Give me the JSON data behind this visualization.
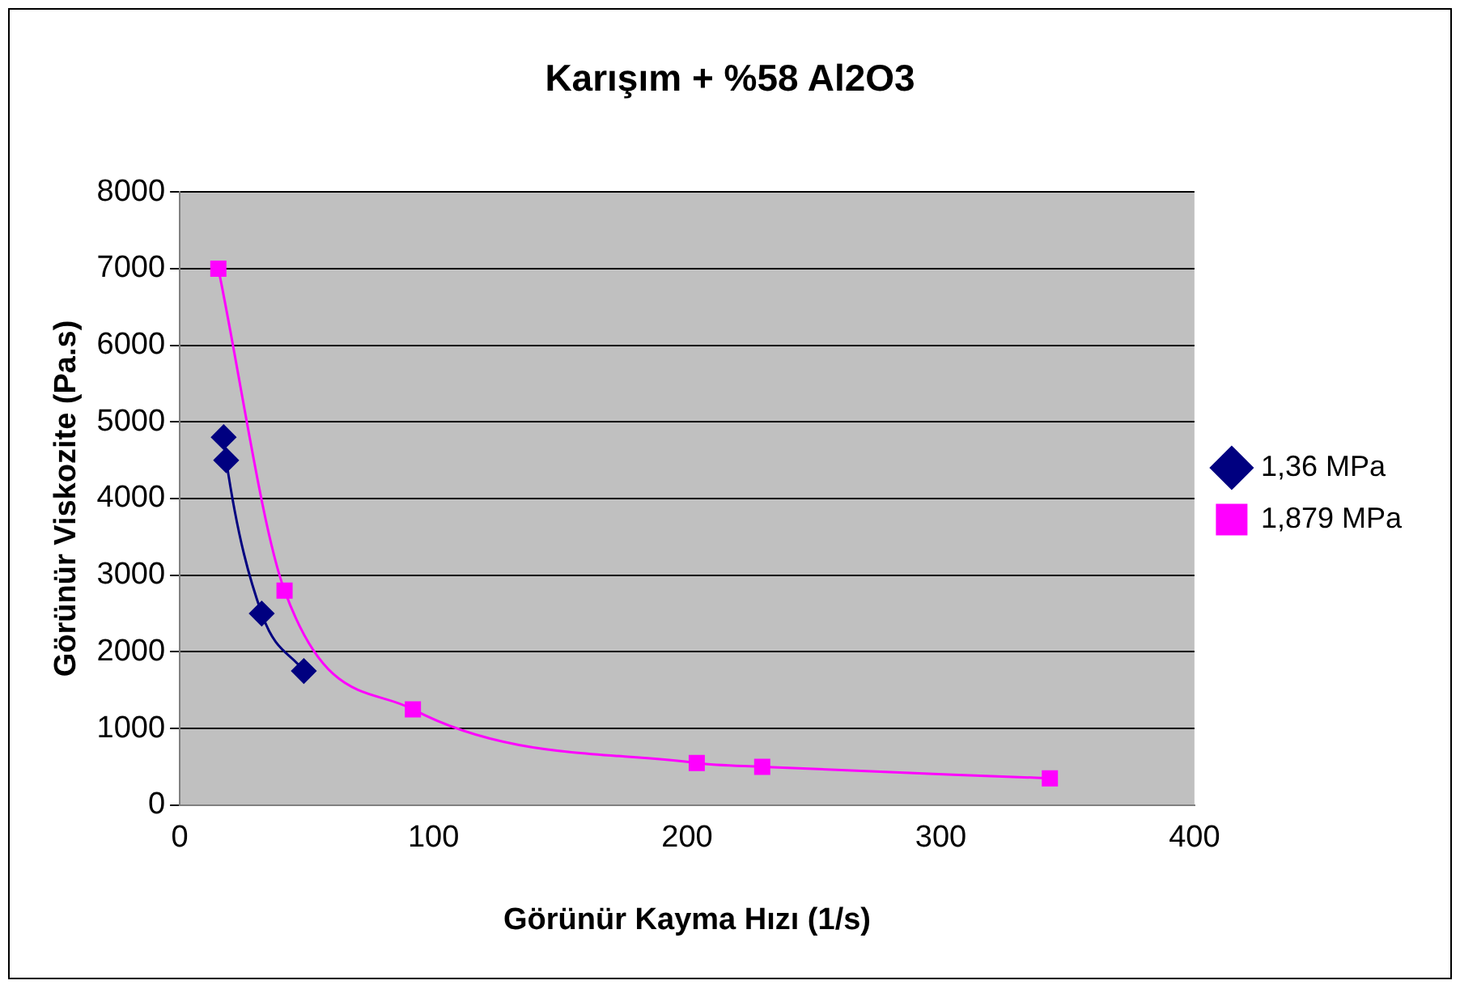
{
  "chart_data": {
    "type": "line",
    "title": "Karışım + %58 Al2O3",
    "xlabel": "Görünür Kayma Hızı (1/s)",
    "ylabel": "Görünür Viskozite (Pa.s)",
    "series": [
      {
        "name": "1,36 MPa",
        "color": "#000080",
        "marker": "diamond",
        "x": [
          17.3,
          18.3,
          32.3,
          48.9
        ],
        "values": [
          4800,
          4500,
          2500,
          1750
        ]
      },
      {
        "name": "1,879 MPa",
        "color": "#ff00ff",
        "marker": "square",
        "x": [
          15.2,
          41.3,
          91.9,
          203.8,
          229.6,
          343
        ],
        "values": [
          7000,
          2800,
          1250,
          550,
          500,
          350
        ]
      }
    ],
    "xlim": [
      0,
      400
    ],
    "xticks": [
      0,
      100,
      200,
      300,
      400
    ],
    "ylim": [
      0,
      8000
    ],
    "yticks": [
      0,
      1000,
      2000,
      3000,
      4000,
      5000,
      6000,
      7000,
      8000
    ],
    "grid": "y",
    "legend": "right"
  }
}
